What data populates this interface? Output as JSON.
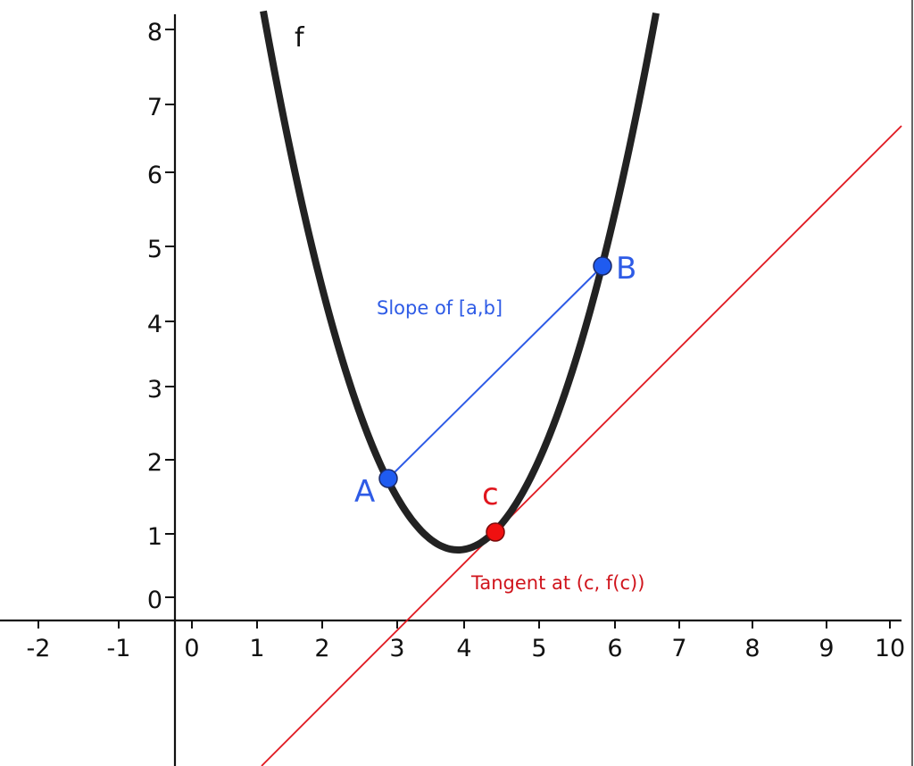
{
  "chart_data": {
    "type": "line",
    "title": "",
    "xlabel": "",
    "ylabel": "",
    "xlim": [
      -2.4,
      10.2
    ],
    "ylim": [
      -2.0,
      8.2
    ],
    "grid": false,
    "x_ticks": [
      -2,
      -1,
      0,
      1,
      2,
      3,
      4,
      5,
      6,
      7,
      8,
      9,
      10
    ],
    "y_ticks": [
      0,
      1,
      2,
      3,
      4,
      5,
      6,
      7,
      8
    ],
    "series": [
      {
        "name": "f",
        "kind": "parabola",
        "color": "#222222",
        "vertex": [
          3.8,
          0.67
        ],
        "x": [
          1.02,
          1.4,
          2.4,
          2.81,
          3.8,
          4.35,
          5.2,
          5.6,
          5.88,
          6.65
        ],
        "y": [
          8.26,
          6.55,
          2.77,
          1.67,
          0.67,
          0.92,
          2.11,
          3.64,
          4.67,
          8.26
        ]
      },
      {
        "name": "Slope of [a,b]",
        "kind": "secant",
        "color": "#2E5BE6",
        "x": [
          2.81,
          5.88
        ],
        "y": [
          1.67,
          4.67
        ]
      },
      {
        "name": "Tangent at (c, f(c))",
        "kind": "tangent",
        "color": "#E0161E",
        "x": [
          1.0,
          10.2
        ],
        "y": [
          -2.0,
          6.6
        ]
      }
    ],
    "points": [
      {
        "label": "A",
        "x": 2.81,
        "y": 1.67,
        "color": "#1F5BF0"
      },
      {
        "label": "B",
        "x": 5.88,
        "y": 4.67,
        "color": "#1F5BF0"
      },
      {
        "label": "c",
        "x": 4.35,
        "y": 0.92,
        "color": "#F01010"
      }
    ],
    "annotations": [
      "f",
      "Slope of [a,b]",
      "Tangent at (c, f(c))",
      "A",
      "B",
      "c"
    ]
  },
  "labels": {
    "function": "f",
    "secant": "Slope of [a,b]",
    "tangent": "Tangent at (c, f(c))",
    "point_a": "A",
    "point_b": "B",
    "point_c": "c"
  },
  "axes": {
    "x_tick_labels": [
      "-2",
      "-1",
      "0",
      "1",
      "2",
      "3",
      "4",
      "5",
      "6",
      "7",
      "8",
      "9",
      "10"
    ],
    "y_tick_labels": [
      "0",
      "1",
      "2",
      "3",
      "4",
      "5",
      "6",
      "7",
      "8"
    ]
  },
  "colors": {
    "curve": "#222222",
    "axis": "#111111",
    "blue": "#2E5BE6",
    "blue_point": "#1F5BF0",
    "red": "#E0161E",
    "red_point": "#F01010",
    "tangent_text": "#D0141C"
  }
}
